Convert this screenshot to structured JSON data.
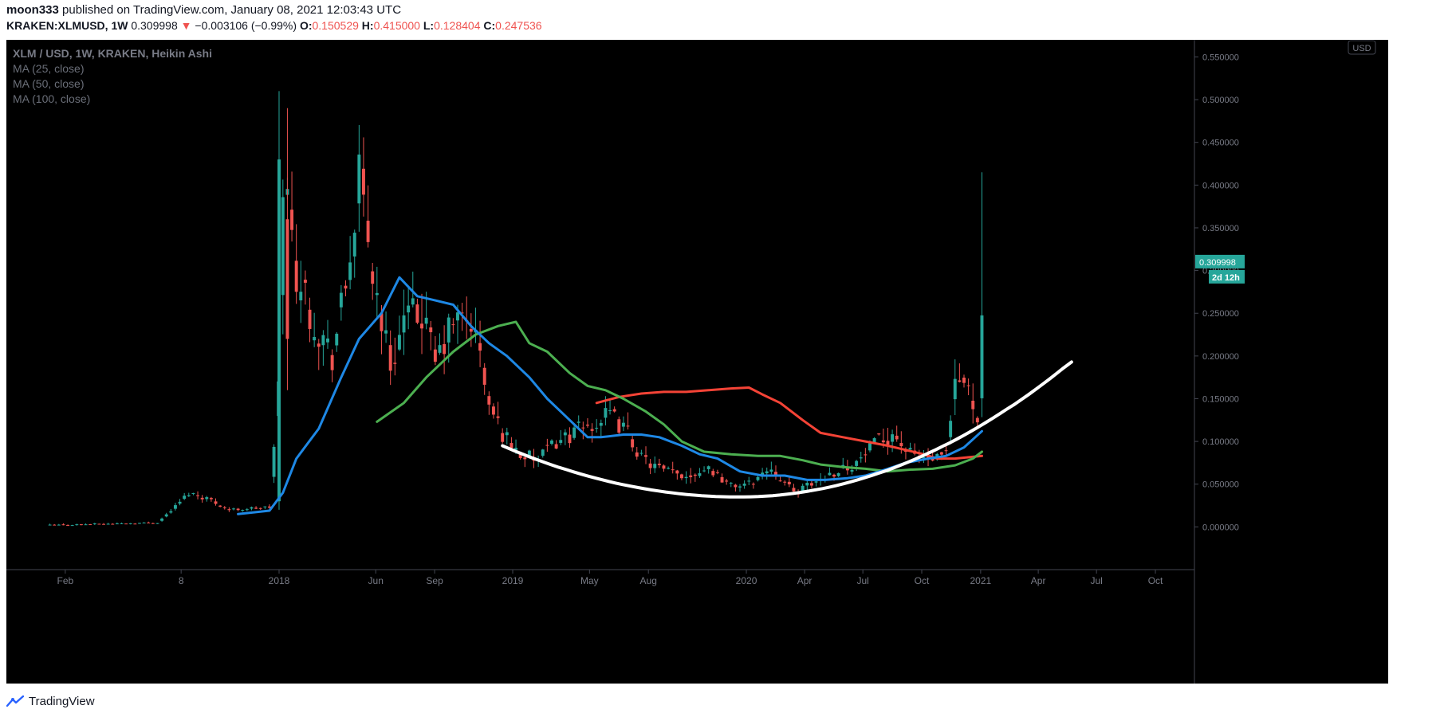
{
  "header": {
    "publisher": "moon333",
    "published_text": " published on TradingView.com, January 08, 2021 12:03:43 UTC"
  },
  "ohlc_line": {
    "symbol": "KRAKEN:XLMUSD, 1W",
    "price": "0.309998",
    "change": "−0.003106 (−0.99%)",
    "o_label": "O:",
    "o": "0.150529",
    "h_label": "H:",
    "h": "0.415000",
    "l_label": "L:",
    "l": "0.128404",
    "c_label": "C:",
    "c": "0.247536"
  },
  "legend": {
    "title": "XLM / USD, 1W, KRAKEN, Heikin Ashi",
    "ma1": "MA (25, close)",
    "ma2": "MA (50, close)",
    "ma3": "MA (100, close)"
  },
  "footer": {
    "brand": "TradingView",
    "icon": "tradingview-logo-icon"
  },
  "chart_data": {
    "type": "candlestick",
    "currency_badge": "USD",
    "price_tag": "0.309998",
    "countdown_tag": "2d 12h",
    "ylim": [
      -0.05,
      0.57
    ],
    "y_ticks": [
      "0.000000",
      "0.050000",
      "0.100000",
      "0.150000",
      "0.200000",
      "0.250000",
      "0.300000",
      "0.350000",
      "0.400000",
      "0.450000",
      "0.500000",
      "0.550000"
    ],
    "x_ticks": [
      {
        "label": "Feb",
        "date": "2017-02-01"
      },
      {
        "label": "8",
        "date": "2017-08-01"
      },
      {
        "label": "2018",
        "date": "2018-01-01"
      },
      {
        "label": "Jun",
        "date": "2018-06-01"
      },
      {
        "label": "Sep",
        "date": "2018-09-01"
      },
      {
        "label": "2019",
        "date": "2019-01-01"
      },
      {
        "label": "May",
        "date": "2019-05-01"
      },
      {
        "label": "Aug",
        "date": "2019-08-01"
      },
      {
        "label": "2020",
        "date": "2020-01-01"
      },
      {
        "label": "Apr",
        "date": "2020-04-01"
      },
      {
        "label": "Jul",
        "date": "2020-07-01"
      },
      {
        "label": "Oct",
        "date": "2020-10-01"
      },
      {
        "label": "2021",
        "date": "2021-01-01"
      },
      {
        "label": "Apr",
        "date": "2021-04-01"
      },
      {
        "label": "Jul",
        "date": "2021-07-01"
      },
      {
        "label": "Oct",
        "date": "2021-10-01"
      }
    ],
    "colors": {
      "up": "#26a69a",
      "down": "#ef5350",
      "ma25": "#1e88e5",
      "ma50": "#4caf50",
      "ma100": "#f44336",
      "curve": "#ffffff"
    },
    "anchors": [
      [
        "2017-01-08",
        0.002
      ],
      [
        "2017-06-25",
        0.005
      ],
      [
        "2017-07-23",
        0.024
      ],
      [
        "2017-08-13",
        0.04
      ],
      [
        "2017-09-10",
        0.034
      ],
      [
        "2017-10-15",
        0.02
      ],
      [
        "2017-12-17",
        0.023
      ],
      [
        "2017-12-31",
        0.16
      ],
      [
        "2018-01-07",
        0.42
      ],
      [
        "2018-01-28",
        0.3
      ],
      [
        "2018-02-25",
        0.24
      ],
      [
        "2018-03-25",
        0.2
      ],
      [
        "2018-04-15",
        0.28
      ],
      [
        "2018-05-06",
        0.4
      ],
      [
        "2018-06-03",
        0.27
      ],
      [
        "2018-06-24",
        0.19
      ],
      [
        "2018-07-15",
        0.24
      ],
      [
        "2018-08-12",
        0.25
      ],
      [
        "2018-09-02",
        0.19
      ],
      [
        "2018-09-30",
        0.24
      ],
      [
        "2018-10-28",
        0.24
      ],
      [
        "2018-11-11",
        0.2
      ],
      [
        "2018-11-25",
        0.14
      ],
      [
        "2018-12-16",
        0.11
      ],
      [
        "2019-01-13",
        0.085
      ],
      [
        "2019-02-10",
        0.078
      ],
      [
        "2019-03-10",
        0.1
      ],
      [
        "2019-04-07",
        0.11
      ],
      [
        "2019-05-05",
        0.12
      ],
      [
        "2019-06-02",
        0.13
      ],
      [
        "2019-06-30",
        0.11
      ],
      [
        "2019-07-21",
        0.08
      ],
      [
        "2019-08-25",
        0.065
      ],
      [
        "2019-09-29",
        0.06
      ],
      [
        "2019-11-03",
        0.07
      ],
      [
        "2019-12-08",
        0.048
      ],
      [
        "2020-01-05",
        0.05
      ],
      [
        "2020-02-09",
        0.07
      ],
      [
        "2020-03-15",
        0.04
      ],
      [
        "2020-04-12",
        0.05
      ],
      [
        "2020-05-17",
        0.065
      ],
      [
        "2020-06-21",
        0.075
      ],
      [
        "2020-07-19",
        0.095
      ],
      [
        "2020-08-16",
        0.11
      ],
      [
        "2020-09-13",
        0.085
      ],
      [
        "2020-10-18",
        0.078
      ],
      [
        "2020-11-08",
        0.082
      ],
      [
        "2020-11-22",
        0.16
      ],
      [
        "2020-12-06",
        0.17
      ],
      [
        "2020-12-27",
        0.135
      ],
      [
        "2021-01-03",
        0.2
      ]
    ],
    "candle_seed": 42,
    "last_candle": {
      "date": "2021-01-03",
      "open": 0.150529,
      "high": 0.415,
      "low": 0.128404,
      "close": 0.247536
    },
    "ma25": [
      [
        "2017-10-29",
        0.015
      ],
      [
        "2017-12-17",
        0.019
      ],
      [
        "2018-01-07",
        0.04
      ],
      [
        "2018-01-28",
        0.08
      ],
      [
        "2018-03-04",
        0.115
      ],
      [
        "2018-04-08",
        0.175
      ],
      [
        "2018-05-06",
        0.22
      ],
      [
        "2018-06-10",
        0.25
      ],
      [
        "2018-07-08",
        0.292
      ],
      [
        "2018-08-05",
        0.27
      ],
      [
        "2018-09-02",
        0.265
      ],
      [
        "2018-09-30",
        0.26
      ],
      [
        "2018-10-28",
        0.235
      ],
      [
        "2018-11-25",
        0.215
      ],
      [
        "2018-12-23",
        0.2
      ],
      [
        "2019-01-27",
        0.175
      ],
      [
        "2019-02-24",
        0.15
      ],
      [
        "2019-03-31",
        0.125
      ],
      [
        "2019-04-28",
        0.105
      ],
      [
        "2019-05-19",
        0.105
      ],
      [
        "2019-06-23",
        0.108
      ],
      [
        "2019-07-21",
        0.108
      ],
      [
        "2019-08-18",
        0.105
      ],
      [
        "2019-09-22",
        0.095
      ],
      [
        "2019-10-20",
        0.085
      ],
      [
        "2019-11-17",
        0.08
      ],
      [
        "2019-12-22",
        0.065
      ],
      [
        "2020-01-26",
        0.06
      ],
      [
        "2020-03-01",
        0.06
      ],
      [
        "2020-04-05",
        0.055
      ],
      [
        "2020-05-03",
        0.055
      ],
      [
        "2020-06-07",
        0.057
      ],
      [
        "2020-07-05",
        0.06
      ],
      [
        "2020-08-09",
        0.068
      ],
      [
        "2020-09-06",
        0.075
      ],
      [
        "2020-10-11",
        0.08
      ],
      [
        "2020-11-08",
        0.083
      ],
      [
        "2020-12-06",
        0.093
      ],
      [
        "2021-01-03",
        0.112
      ]
    ],
    "ma50": [
      [
        "2018-06-03",
        0.123
      ],
      [
        "2018-07-15",
        0.145
      ],
      [
        "2018-08-19",
        0.175
      ],
      [
        "2018-09-30",
        0.205
      ],
      [
        "2018-11-04",
        0.225
      ],
      [
        "2018-12-09",
        0.235
      ],
      [
        "2019-01-06",
        0.24
      ],
      [
        "2019-01-27",
        0.215
      ],
      [
        "2019-02-24",
        0.205
      ],
      [
        "2019-03-31",
        0.18
      ],
      [
        "2019-04-28",
        0.165
      ],
      [
        "2019-05-26",
        0.16
      ],
      [
        "2019-06-23",
        0.15
      ],
      [
        "2019-07-28",
        0.135
      ],
      [
        "2019-08-25",
        0.12
      ],
      [
        "2019-09-22",
        0.1
      ],
      [
        "2019-10-27",
        0.088
      ],
      [
        "2019-12-08",
        0.085
      ],
      [
        "2020-01-19",
        0.083
      ],
      [
        "2020-02-23",
        0.083
      ],
      [
        "2020-03-29",
        0.078
      ],
      [
        "2020-04-26",
        0.073
      ],
      [
        "2020-05-31",
        0.07
      ],
      [
        "2020-07-05",
        0.068
      ],
      [
        "2020-08-09",
        0.065
      ],
      [
        "2020-09-13",
        0.067
      ],
      [
        "2020-10-18",
        0.068
      ],
      [
        "2020-11-22",
        0.072
      ],
      [
        "2020-12-20",
        0.08
      ],
      [
        "2021-01-03",
        0.088
      ]
    ],
    "ma100": [
      [
        "2019-05-12",
        0.145
      ],
      [
        "2019-06-16",
        0.152
      ],
      [
        "2019-07-21",
        0.156
      ],
      [
        "2019-08-25",
        0.158
      ],
      [
        "2019-09-29",
        0.158
      ],
      [
        "2019-11-03",
        0.16
      ],
      [
        "2019-12-08",
        0.162
      ],
      [
        "2020-01-05",
        0.163
      ],
      [
        "2020-01-26",
        0.155
      ],
      [
        "2020-02-23",
        0.145
      ],
      [
        "2020-03-29",
        0.125
      ],
      [
        "2020-04-26",
        0.11
      ],
      [
        "2020-05-31",
        0.105
      ],
      [
        "2020-07-05",
        0.1
      ],
      [
        "2020-08-09",
        0.095
      ],
      [
        "2020-09-06",
        0.09
      ],
      [
        "2020-10-04",
        0.085
      ],
      [
        "2020-10-25",
        0.08
      ],
      [
        "2020-11-22",
        0.08
      ],
      [
        "2020-12-20",
        0.082
      ],
      [
        "2021-01-03",
        0.083
      ]
    ],
    "curve": {
      "start_date": "2018-12-16",
      "end_date": "2021-05-23",
      "start_value": 0.095,
      "end_value": 0.193,
      "bottom_date": "2019-12-22",
      "bottom_value": 0.035
    }
  }
}
